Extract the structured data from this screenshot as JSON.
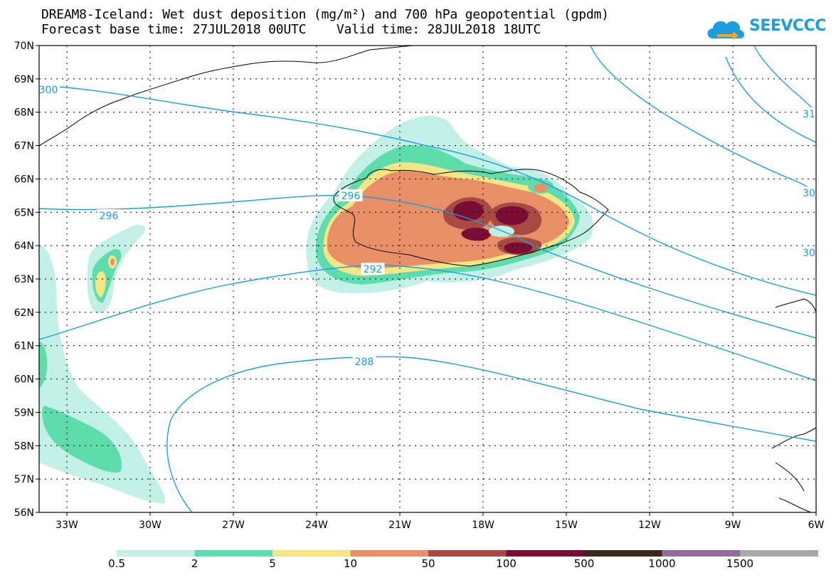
{
  "title": {
    "line1": "DREAM8-Iceland: Wet dust deposition (mg/m²) and 700 hPa geopotential (gpdm)",
    "line2": "Forecast base time: 27JUL2018 00UTC    Valid time: 28JUL2018 18UTC"
  },
  "logo": {
    "text": "SEEVCCC",
    "icon": "cloud-arrow-icon",
    "color": "#1a9ee0"
  },
  "map": {
    "lat_labels": [
      "70N",
      "69N",
      "68N",
      "67N",
      "66N",
      "65N",
      "64N",
      "63N",
      "62N",
      "61N",
      "60N",
      "59N",
      "58N",
      "57N",
      "56N"
    ],
    "lon_labels": [
      "33W",
      "30W",
      "27W",
      "24W",
      "21W",
      "18W",
      "15W",
      "12W",
      "9W",
      "6W"
    ],
    "contour_labels": [
      "300",
      "296",
      "296",
      "292",
      "288",
      "31",
      "30",
      "30"
    ],
    "contour_color": "#1a9ee0",
    "gridlines": "dotted"
  },
  "legend": {
    "thresholds": [
      "0.5",
      "2",
      "5",
      "10",
      "50",
      "100",
      "500",
      "1000",
      "1500"
    ],
    "colors": [
      "#c2f0e6",
      "#5fdcac",
      "#f5e685",
      "#e88f68",
      "#a84a42",
      "#7a0d34",
      "#3b2a1a",
      "#946c9c",
      "#a8a8a8"
    ]
  }
}
